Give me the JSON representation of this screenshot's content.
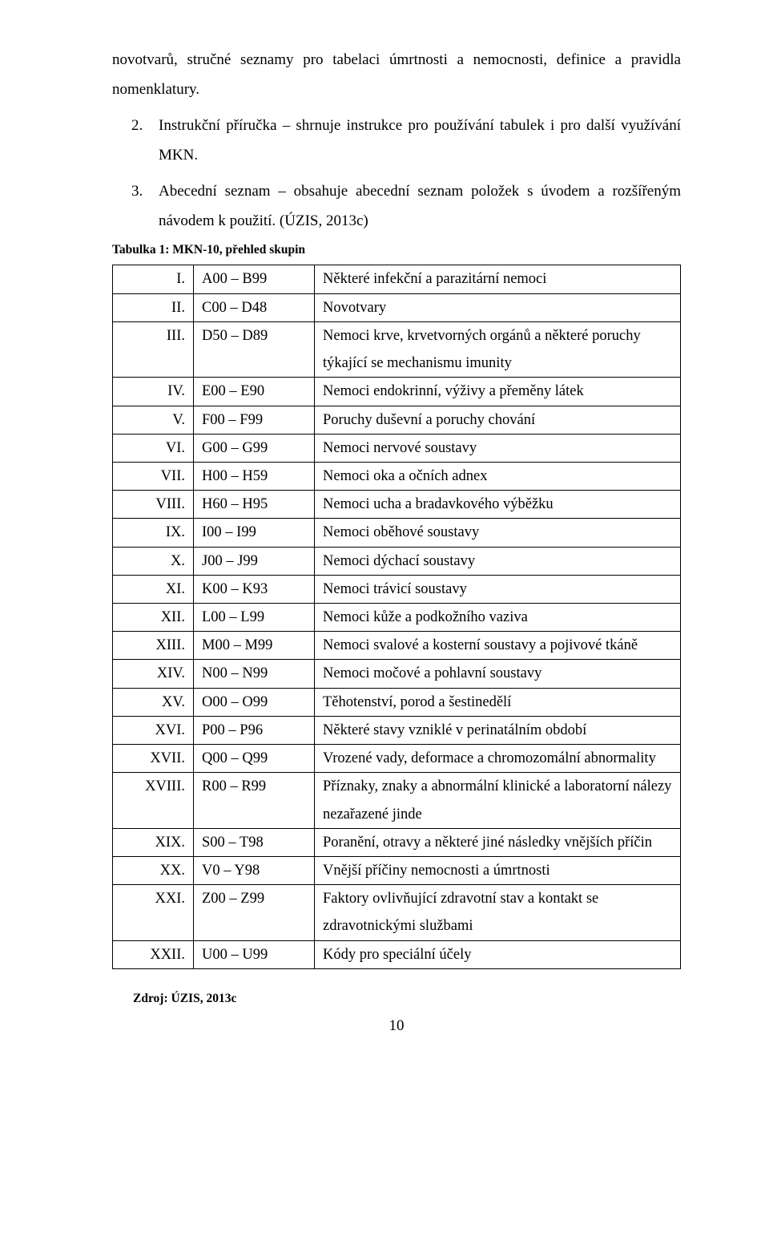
{
  "intro": {
    "continued": "novotvarů, stručné seznamy pro tabelaci úmrtnosti a nemocnosti, definice a pravidla nomenklatury.",
    "items": [
      {
        "num": "2.",
        "text": "Instrukční příručka – shrnuje instrukce pro používání tabulek i pro další využívání MKN."
      },
      {
        "num": "3.",
        "text": "Abecední seznam – obsahuje abecední seznam položek s úvodem a rozšířeným návodem k použití. (ÚZIS, 2013c)"
      }
    ]
  },
  "tableCaption": "Tabulka 1: MKN-10, přehled skupin",
  "rows": [
    {
      "c1": "I.",
      "c2": "A00 – B99",
      "c3": "Některé infekční a parazitární nemoci"
    },
    {
      "c1": "II.",
      "c2": "C00 – D48",
      "c3": "Novotvary"
    },
    {
      "c1": "III.",
      "c2": "D50 – D89",
      "c3": "Nemoci krve, krvetvorných orgánů a některé poruchy týkající se mechanismu imunity"
    },
    {
      "c1": "IV.",
      "c2": "E00 – E90",
      "c3": "Nemoci endokrinní, výživy a přeměny látek"
    },
    {
      "c1": "V.",
      "c2": "F00 – F99",
      "c3": "Poruchy duševní a poruchy chování"
    },
    {
      "c1": "VI.",
      "c2": "G00 – G99",
      "c3": "Nemoci nervové soustavy"
    },
    {
      "c1": "VII.",
      "c2": "H00 – H59",
      "c3": "Nemoci oka a očních adnex"
    },
    {
      "c1": "VIII.",
      "c2": "H60 – H95",
      "c3": "Nemoci ucha a bradavkového výběžku"
    },
    {
      "c1": "IX.",
      "c2": "I00 – I99",
      "c3": "Nemoci oběhové soustavy"
    },
    {
      "c1": "X.",
      "c2": "J00 – J99",
      "c3": "Nemoci dýchací soustavy"
    },
    {
      "c1": "XI.",
      "c2": "K00 – K93",
      "c3": "Nemoci trávicí soustavy"
    },
    {
      "c1": "XII.",
      "c2": "L00 – L99",
      "c3": "Nemoci kůže a podkožního vaziva"
    },
    {
      "c1": "XIII.",
      "c2": "M00 – M99",
      "c3": "Nemoci svalové a kosterní soustavy a pojivové tkáně"
    },
    {
      "c1": "XIV.",
      "c2": "N00 – N99",
      "c3": "Nemoci močové a pohlavní soustavy"
    },
    {
      "c1": "XV.",
      "c2": "O00 – O99",
      "c3": "Těhotenství, porod a  šestinedělí"
    },
    {
      "c1": "XVI.",
      "c2": "P00 – P96",
      "c3": "Některé stavy vzniklé v perinatálním období"
    },
    {
      "c1": "XVII.",
      "c2": "Q00 – Q99",
      "c3": "Vrozené vady, deformace a chromozomální abnormality"
    },
    {
      "c1": "XVIII.",
      "c2": "R00 – R99",
      "c3": "Příznaky, znaky a abnormální klinické a laboratorní nálezy nezařazené jinde"
    },
    {
      "c1": "XIX.",
      "c2": "S00 – T98",
      "c3": "Poranění, otravy a některé jiné následky vnějších příčin"
    },
    {
      "c1": "XX.",
      "c2": "V0 – Y98",
      "c3": "Vnější příčiny nemocnosti a úmrtnosti"
    },
    {
      "c1": "XXI.",
      "c2": "Z00 – Z99",
      "c3": "Faktory ovlivňující zdravotní stav a kontakt se zdravotnickými službami"
    },
    {
      "c1": "XXII.",
      "c2": "U00 – U99",
      "c3": "Kódy pro speciální účely"
    }
  ],
  "source": "Zdroj: ÚZIS, 2013c",
  "pageNumber": "10"
}
